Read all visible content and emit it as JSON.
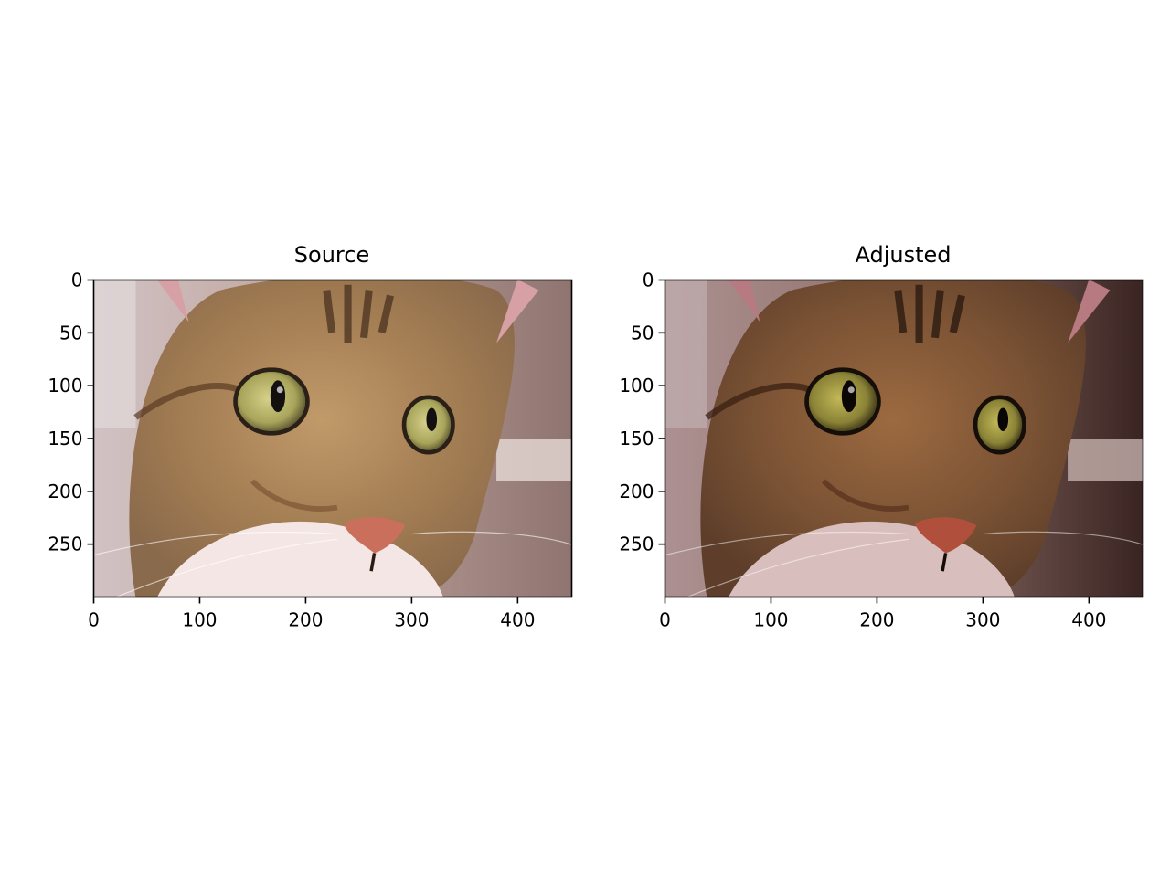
{
  "chart_data": [
    {
      "type": "image",
      "title": "Source",
      "image_subject": "close-up photograph of a tabby cat's face",
      "image_size": {
        "width": 451,
        "height": 300
      },
      "xlim": [
        0,
        451
      ],
      "ylim": [
        300,
        0
      ],
      "xticks": [
        0,
        100,
        200,
        300,
        400
      ],
      "yticks": [
        0,
        50,
        100,
        150,
        200,
        250
      ],
      "grid": false,
      "colors": {
        "fur": "#a27c52",
        "eye": "#b8b46a",
        "nose": "#c96f5c",
        "background": "#c9b4b0"
      }
    },
    {
      "type": "image",
      "title": "Adjusted",
      "image_subject": "same tabby cat photograph, darker with warmer contrast",
      "image_size": {
        "width": 451,
        "height": 300
      },
      "xlim": [
        0,
        451
      ],
      "ylim": [
        300,
        0
      ],
      "xticks": [
        0,
        100,
        200,
        300,
        400
      ],
      "yticks": [
        0,
        50,
        100,
        150,
        200,
        250
      ],
      "grid": false,
      "colors": {
        "fur": "#7a5234",
        "eye": "#9a9440",
        "nose": "#b0503c",
        "background": "#9a7e7c"
      }
    }
  ]
}
